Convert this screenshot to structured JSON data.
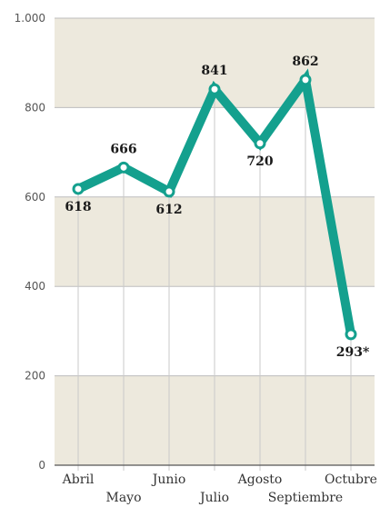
{
  "chart_data": {
    "type": "line",
    "title": "",
    "xlabel": "",
    "ylabel": "",
    "categories": [
      "Abril",
      "Mayo",
      "Junio",
      "Julio",
      "Agosto",
      "Septiembre",
      "Octubre"
    ],
    "values": [
      618,
      666,
      612,
      841,
      720,
      862,
      293
    ],
    "data_labels": [
      "618",
      "666",
      "612",
      "841",
      "720",
      "862",
      "293*"
    ],
    "ylim": [
      0,
      1000
    ],
    "yticks": [
      0,
      200,
      400,
      600,
      800,
      1000
    ],
    "ytick_labels": [
      "0",
      "200",
      "400",
      "600",
      "800",
      "1.000"
    ],
    "grid": "alternating horizontal bands",
    "colors": {
      "line": "#14a08e",
      "marker_fill": "#ffffff",
      "band": "#ede9dd",
      "gridline": "#bdbdbd"
    }
  }
}
